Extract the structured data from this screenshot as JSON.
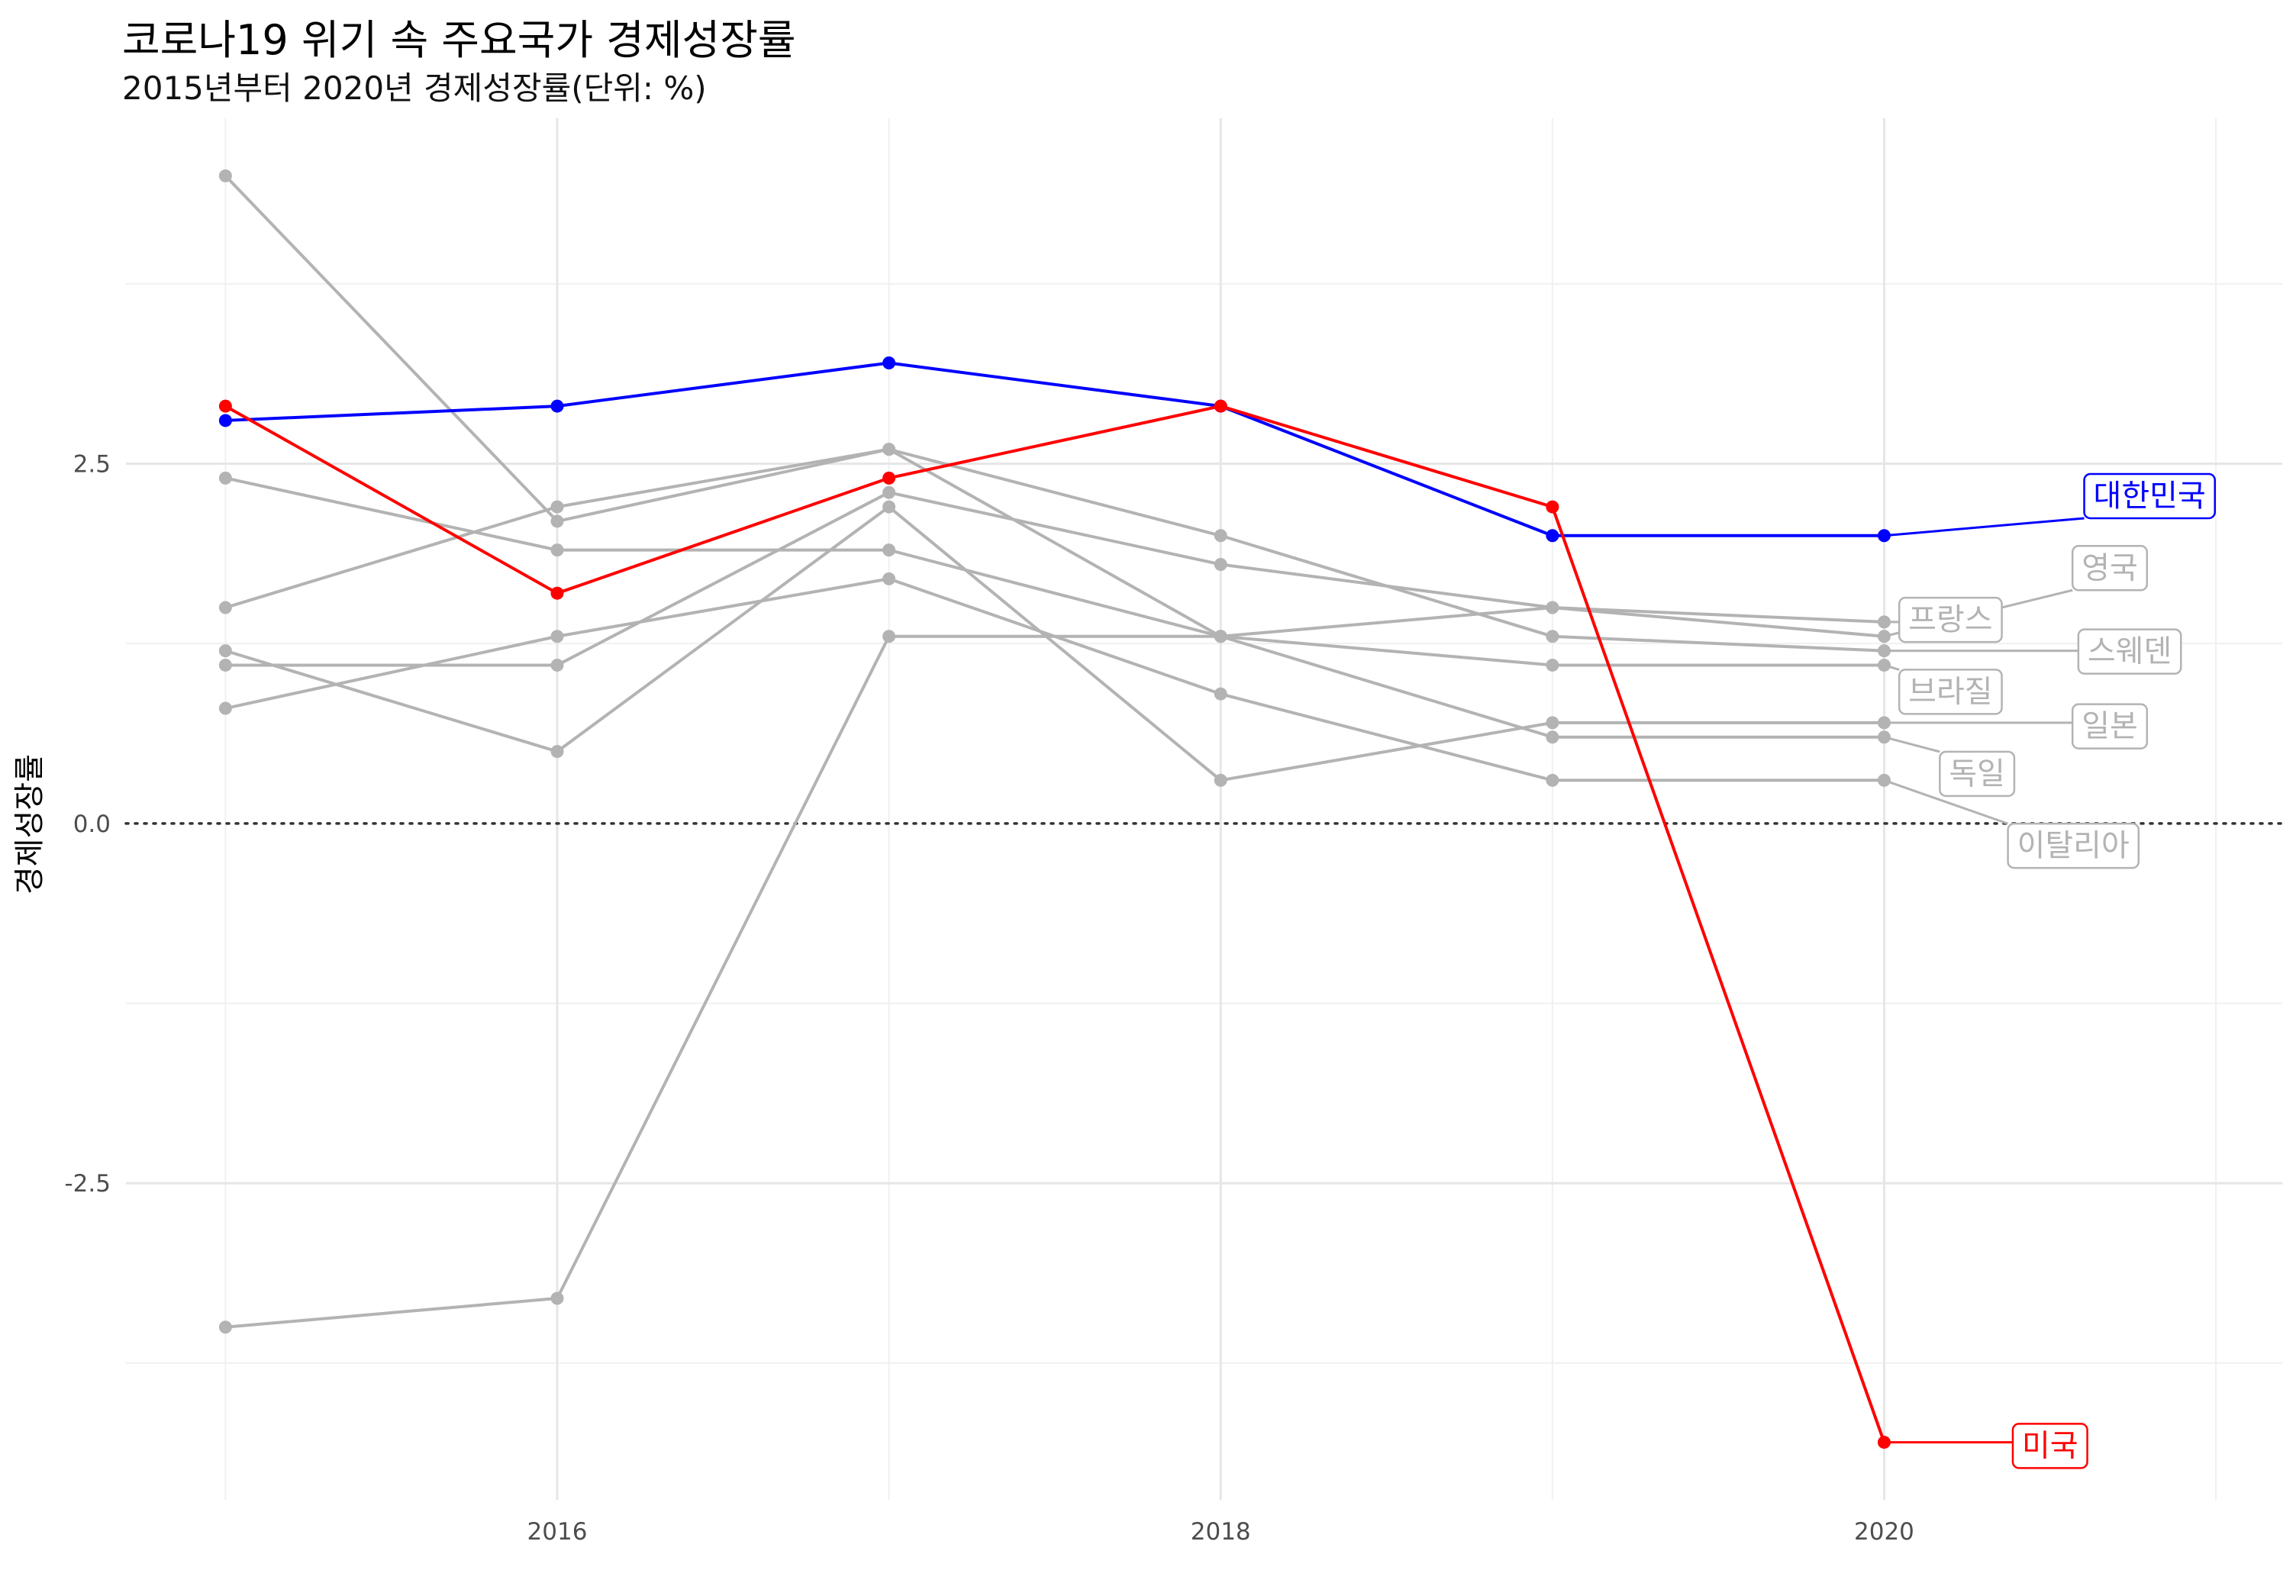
{
  "chart_data": {
    "type": "line",
    "title": "코로나19 위기 속 주요국가 경제성장률",
    "subtitle": "2015년부터 2020년 경제성장률(단위: %)",
    "ylabel": "경제성장률",
    "xlabel": "",
    "x": [
      2015,
      2016,
      2017,
      2018,
      2019,
      2020
    ],
    "xlim": [
      2014.7,
      2021.2
    ],
    "ylim": [
      -4.7,
      4.9
    ],
    "x_ticks": [
      2016,
      2018,
      2020
    ],
    "x_tick_labels": [
      "2016",
      "2018",
      "2020"
    ],
    "y_ticks": [
      -2.5,
      0,
      2.5
    ],
    "y_tick_labels": [
      "-2.5",
      "0.0",
      "2.5"
    ],
    "reference_line": 0,
    "grid": true,
    "colors": {
      "highlight_korea": "#0000ff",
      "highlight_usa": "#ff0000",
      "others": "#b3b3b3"
    },
    "series": [
      {
        "name": "이탈리아",
        "values": [
          0.8,
          1.3,
          1.7,
          0.9,
          0.3,
          0.3
        ],
        "color": "#b3b3b3"
      },
      {
        "name": "독일",
        "values": [
          1.5,
          2.2,
          2.6,
          1.3,
          0.6,
          0.6
        ],
        "color": "#b3b3b3"
      },
      {
        "name": "일본",
        "values": [
          1.2,
          0.5,
          2.2,
          0.3,
          0.7,
          0.7
        ],
        "color": "#b3b3b3"
      },
      {
        "name": "브라질",
        "values": [
          -3.5,
          -3.3,
          1.3,
          1.3,
          1.1,
          1.1
        ],
        "color": "#b3b3b3"
      },
      {
        "name": "스웨덴",
        "values": [
          4.5,
          2.1,
          2.6,
          2.0,
          1.3,
          1.2
        ],
        "color": "#b3b3b3"
      },
      {
        "name": "프랑스",
        "values": [
          1.1,
          1.1,
          2.3,
          1.8,
          1.5,
          1.4
        ],
        "color": "#b3b3b3"
      },
      {
        "name": "영국",
        "values": [
          2.4,
          1.9,
          1.9,
          1.3,
          1.5,
          1.3
        ],
        "color": "#b3b3b3"
      },
      {
        "name": "대한민국",
        "values": [
          2.8,
          2.9,
          3.2,
          2.9,
          2.0,
          2.0
        ],
        "color": "#0000ff"
      },
      {
        "name": "미국",
        "values": [
          2.9,
          1.6,
          2.4,
          2.9,
          2.2,
          -4.3
        ],
        "color": "#ff0000"
      }
    ],
    "labels": [
      {
        "series": "대한민국",
        "text": "대한민국",
        "at": [
          2020.8,
          2.28
        ],
        "color": "#0000ff"
      },
      {
        "series": "영국",
        "text": "영국",
        "at": [
          2020.68,
          1.78
        ],
        "color": "#b3b3b3"
      },
      {
        "series": "프랑스",
        "text": "프랑스",
        "at": [
          2020.2,
          1.42
        ],
        "color": "#b3b3b3"
      },
      {
        "series": "스웨덴",
        "text": "스웨덴",
        "at": [
          2020.74,
          1.2
        ],
        "color": "#b3b3b3"
      },
      {
        "series": "브라질",
        "text": "브라질",
        "at": [
          2020.2,
          0.92
        ],
        "color": "#b3b3b3"
      },
      {
        "series": "일본",
        "text": "일본",
        "at": [
          2020.68,
          0.68
        ],
        "color": "#b3b3b3"
      },
      {
        "series": "독일",
        "text": "독일",
        "at": [
          2020.28,
          0.35
        ],
        "color": "#b3b3b3"
      },
      {
        "series": "이탈리아",
        "text": "이탈리아",
        "at": [
          2020.57,
          -0.15
        ],
        "color": "#b3b3b3"
      },
      {
        "series": "미국",
        "text": "미국",
        "at": [
          2020.5,
          -4.32
        ],
        "color": "#ff0000"
      }
    ]
  }
}
